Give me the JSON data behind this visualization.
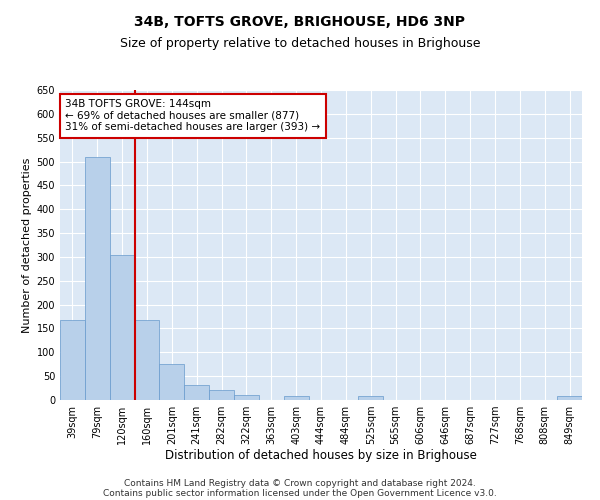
{
  "title": "34B, TOFTS GROVE, BRIGHOUSE, HD6 3NP",
  "subtitle": "Size of property relative to detached houses in Brighouse",
  "xlabel": "Distribution of detached houses by size in Brighouse",
  "ylabel": "Number of detached properties",
  "bar_color": "#b8d0ea",
  "bar_edge_color": "#6699cc",
  "background_color": "#dce8f5",
  "grid_color": "#ffffff",
  "annotation_box_color": "#ffffff",
  "annotation_border_color": "#cc0000",
  "vline_color": "#cc0000",
  "fig_background": "#ffffff",
  "categories": [
    "39sqm",
    "79sqm",
    "120sqm",
    "160sqm",
    "201sqm",
    "241sqm",
    "282sqm",
    "322sqm",
    "363sqm",
    "403sqm",
    "444sqm",
    "484sqm",
    "525sqm",
    "565sqm",
    "606sqm",
    "646sqm",
    "687sqm",
    "727sqm",
    "768sqm",
    "808sqm",
    "849sqm"
  ],
  "values": [
    168,
    510,
    305,
    168,
    76,
    31,
    20,
    10,
    0,
    8,
    0,
    0,
    8,
    0,
    0,
    0,
    0,
    0,
    0,
    0,
    8
  ],
  "vline_position": 2.5,
  "annotation_line1": "34B TOFTS GROVE: 144sqm",
  "annotation_line2": "← 69% of detached houses are smaller (877)",
  "annotation_line3": "31% of semi-detached houses are larger (393) →",
  "ylim": [
    0,
    650
  ],
  "yticks": [
    0,
    50,
    100,
    150,
    200,
    250,
    300,
    350,
    400,
    450,
    500,
    550,
    600,
    650
  ],
  "footer_line1": "Contains HM Land Registry data © Crown copyright and database right 2024.",
  "footer_line2": "Contains public sector information licensed under the Open Government Licence v3.0.",
  "title_fontsize": 10,
  "subtitle_fontsize": 9,
  "xlabel_fontsize": 8.5,
  "ylabel_fontsize": 8,
  "tick_fontsize": 7,
  "annotation_fontsize": 7.5,
  "footer_fontsize": 6.5
}
